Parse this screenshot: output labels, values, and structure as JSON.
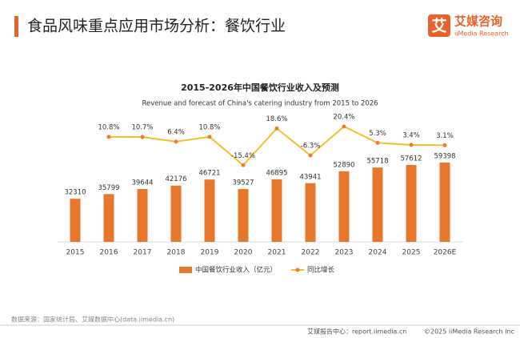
{
  "header": {
    "title": "食品风味重点应用市场分析：餐饮行业",
    "logo_cn": "艾媒咨询",
    "logo_en": "iiMedia Research",
    "logo_mark": "艾"
  },
  "chart_data": {
    "type": "bar-line",
    "title": "2015-2026年中国餐饮行业收入及预测",
    "subtitle": "Revenue and forecast of China's catering industry from 2015 to 2026",
    "categories": [
      "2015",
      "2016",
      "2017",
      "2018",
      "2019",
      "2020",
      "2021",
      "2022",
      "2023",
      "2024",
      "2025",
      "2026E"
    ],
    "ylim": [
      0,
      60000
    ],
    "y2lim": [
      -30,
      30
    ],
    "legend": "bottom",
    "series": [
      {
        "name": "中国餐饮行业收入（亿元）",
        "type": "bar",
        "color": "#e8772e",
        "values": [
          32310,
          35799,
          39644,
          42176,
          46721,
          39527,
          46895,
          43941,
          52890,
          55718,
          57612,
          59398
        ]
      },
      {
        "name": "同比增长",
        "type": "line",
        "axis": "y2",
        "color": "#f5c02a",
        "marker_color": "#ee7d2c",
        "values": [
          null,
          10.8,
          10.7,
          6.4,
          10.8,
          -15.4,
          18.6,
          -6.3,
          20.4,
          5.3,
          3.4,
          3.1
        ],
        "value_labels": [
          null,
          "10.8%",
          "10.7%",
          "6.4%",
          "10.8%",
          "-15.4%",
          "18.6%",
          "-6.3%",
          "20.4%",
          "5.3%",
          "3.4%",
          "3.1%"
        ]
      }
    ]
  },
  "footer": {
    "source": "数据来源：国家统计局、艾媒数据中心(data.iimedia.cn)",
    "report": "艾媒报告中心：report.iimedia.cn",
    "copyright": "©2025  iiMedia Research  Inc"
  }
}
